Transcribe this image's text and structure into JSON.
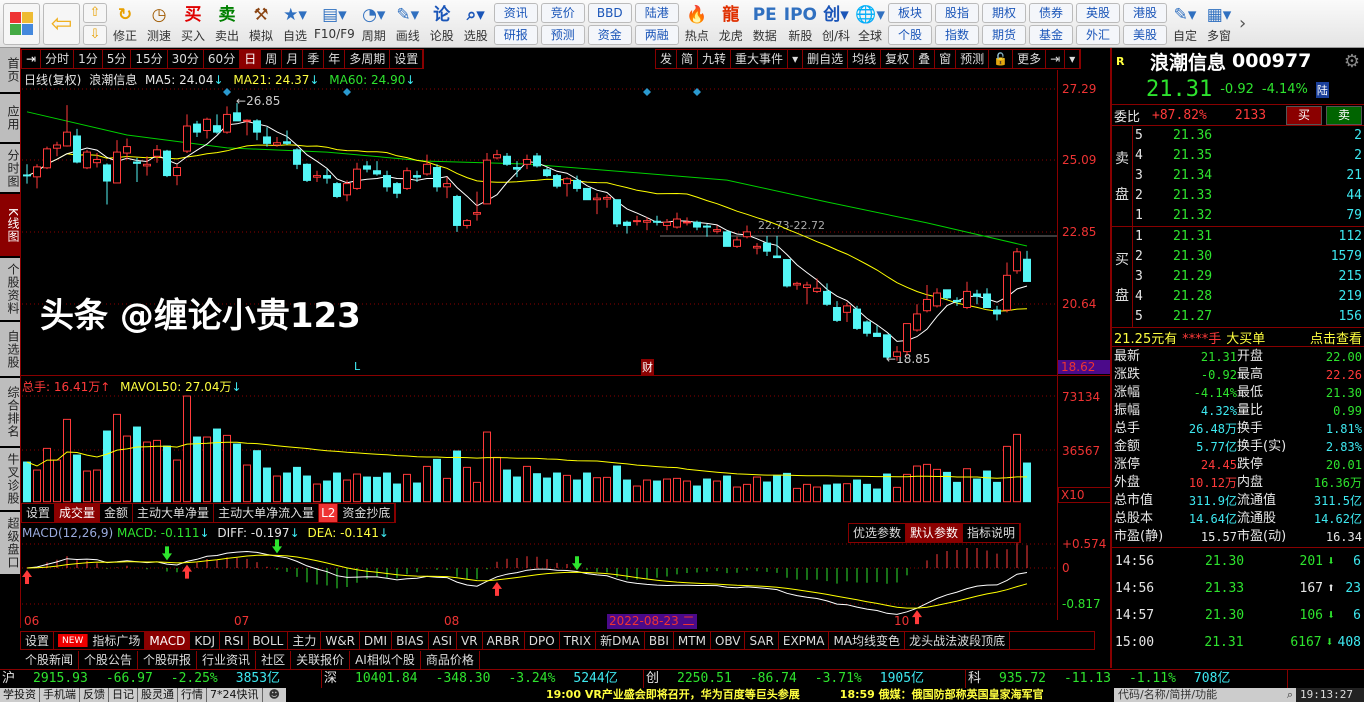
{
  "toolbar": {
    "nav": [
      {
        "icon": "up-arrow-icon",
        "glyph": "⇧"
      },
      {
        "icon": "down-arrow-icon",
        "glyph": "⇩"
      }
    ],
    "icons_a": [
      {
        "label": "修正",
        "icon": "refresh-icon",
        "glyph": "↻",
        "color": "#e8a000"
      },
      {
        "label": "测速",
        "icon": "clock-icon",
        "glyph": "◷",
        "color": "#a05a00"
      },
      {
        "label": "买入",
        "icon": "buy-icon",
        "glyph": "买",
        "color": "#e00000"
      },
      {
        "label": "卖出",
        "icon": "sell-icon",
        "glyph": "卖",
        "color": "#008000"
      },
      {
        "label": "模拟",
        "icon": "gavel-icon",
        "glyph": "⚒",
        "color": "#8b4513"
      },
      {
        "label": "自选",
        "icon": "favorites-folder-icon",
        "glyph": "★▾",
        "color": "#3070c0"
      },
      {
        "label": "F10/F9",
        "icon": "f10-document-icon",
        "glyph": "▤▾",
        "color": "#3070c0"
      },
      {
        "label": "周期",
        "icon": "period-icon",
        "glyph": "◔▾",
        "color": "#3070c0"
      },
      {
        "label": "画线",
        "icon": "pencil-icon",
        "glyph": "✎▾",
        "color": "#3070c0"
      },
      {
        "label": "论股",
        "icon": "discuss-icon",
        "glyph": "论",
        "color": "#1a55b8"
      },
      {
        "label": "选股",
        "icon": "stock-picker-icon",
        "glyph": "⌕▾",
        "color": "#1a55b8"
      }
    ],
    "pairs_a": [
      [
        "资讯",
        "研报"
      ],
      [
        "竞价",
        "预测"
      ],
      [
        "BBD",
        "资金"
      ],
      [
        "陆港",
        "两融"
      ]
    ],
    "icons_b": [
      {
        "label": "热点",
        "icon": "hot-fire-icon",
        "glyph": "🔥",
        "color": "#e03000"
      },
      {
        "label": "龙虎",
        "icon": "dragon-icon",
        "glyph": "龍",
        "color": "#e03000"
      },
      {
        "label": "数据",
        "icon": "pe-data-icon",
        "glyph": "PE",
        "color": "#3070c0"
      },
      {
        "label": "新股",
        "icon": "ipo-icon",
        "glyph": "IPO",
        "color": "#3070c0"
      },
      {
        "label": "创/科",
        "icon": "chuang-icon",
        "glyph": "创▾",
        "color": "#1a55b8"
      },
      {
        "label": "全球",
        "icon": "globe-icon",
        "glyph": "🌐▾",
        "color": "#3070c0"
      }
    ],
    "pairs_b": [
      [
        "板块",
        "个股"
      ],
      [
        "股指",
        "指数"
      ],
      [
        "期权",
        "期货"
      ],
      [
        "债券",
        "基金"
      ],
      [
        "英股",
        "外汇"
      ],
      [
        "港股",
        "美股"
      ]
    ],
    "icons_c": [
      {
        "label": "自定",
        "icon": "customize-icon",
        "glyph": "✎▾",
        "color": "#3070c0"
      },
      {
        "label": "多窗",
        "icon": "multi-window-icon",
        "glyph": "▦▾",
        "color": "#3070c0"
      }
    ],
    "more": "›"
  },
  "sidebar": [
    {
      "label": "首页"
    },
    {
      "label": "应用"
    },
    {
      "label": "分时图"
    },
    {
      "label": "K线图",
      "active": true
    },
    {
      "label": "个股资料"
    },
    {
      "label": "自选股"
    },
    {
      "label": "综合排名"
    },
    {
      "label": "牛叉诊股"
    },
    {
      "label": "超级盘口"
    }
  ],
  "period_tabs": [
    "分时",
    "1分",
    "5分",
    "15分",
    "30分",
    "60分",
    "日",
    "周",
    "月",
    "季",
    "年",
    "多周期",
    "设置"
  ],
  "period_active": "日",
  "tool_tabs": [
    "发",
    "简",
    "九转",
    "重大事件",
    "▾",
    "删自选",
    "均线",
    "复权",
    "叠",
    "窗",
    "预测",
    "🔓",
    "更多",
    "⇥",
    "▾"
  ],
  "chart_info": {
    "title": "日线(复权)",
    "name": "浪潮信息",
    "ma5": "MA5: 24.04",
    "ma21": "MA21: 24.37",
    "ma60": "MA60: 24.90",
    "arrow_down": "↓"
  },
  "price_axis": [
    "27.29",
    "25.09",
    "22.85",
    "20.64",
    "18.62"
  ],
  "annotations": {
    "high": "26.85",
    "range": "22.73-22.72",
    "low": "18.85",
    "l_mark": "L",
    "cai_mark": "财"
  },
  "volume_info": {
    "label": "总手: 16.41万",
    "up": "↑",
    "mavol": "MAVOL50: 27.04万",
    "down": "↓"
  },
  "volume_axis": [
    "73134",
    "36567",
    "X10"
  ],
  "sub_tabs": [
    "设置",
    "成交量",
    "金额",
    "主动大单净量",
    "主动大单净流入量",
    "L2",
    "资金抄底"
  ],
  "sub_active": "成交量",
  "macd_info": {
    "name": "MACD(12,26,9)",
    "macd": "MACD: -0.111",
    "diff": "DIFF: -0.197",
    "dea": "DEA: -0.141",
    "down": "↓"
  },
  "macd_buttons": [
    "优选参数",
    "默认参数",
    "指标说明"
  ],
  "macd_axis": [
    "+0.574",
    "0",
    "-0.817"
  ],
  "date_axis": [
    {
      "label": "06",
      "i": 0
    },
    {
      "label": "07",
      "i": 21
    },
    {
      "label": "08",
      "i": 42
    },
    {
      "label": "10",
      "i": 87
    }
  ],
  "date_highlight": "2022-08-23 二",
  "indicator_tabs": [
    "设置",
    "NEW",
    "指标广场",
    "MACD",
    "KDJ",
    "RSI",
    "BOLL",
    "主力",
    "W&R",
    "DMI",
    "BIAS",
    "ASI",
    "VR",
    "ARBR",
    "DPO",
    "TRIX",
    "新DMA",
    "BBI",
    "MTM",
    "OBV",
    "SAR",
    "EXPMA",
    "MA均线变色",
    "龙头战法波段顶底"
  ],
  "indicator_active": "MACD",
  "news_tabs": [
    "个股新闻",
    "个股公告",
    "个股研报",
    "行业资讯",
    "社区",
    "关联报价",
    "AI相似个股",
    "商品价格"
  ],
  "quote": {
    "flag": "R",
    "name": "浪潮信息",
    "code": "000977",
    "price": "21.31",
    "change": "-0.92",
    "pct": "-4.14%",
    "tag": "陆",
    "weibi_label": "委比",
    "weibi": "+87.82%",
    "weicha": "2133",
    "buy_btn": "买",
    "sell_btn": "卖",
    "sell_label": [
      "卖",
      "盘"
    ],
    "buy_label": [
      "买",
      "盘"
    ],
    "asks": [
      [
        "5",
        "21.36",
        "2"
      ],
      [
        "4",
        "21.35",
        "2"
      ],
      [
        "3",
        "21.34",
        "21"
      ],
      [
        "2",
        "21.33",
        "44"
      ],
      [
        "1",
        "21.32",
        "79"
      ]
    ],
    "bids": [
      [
        "1",
        "21.31",
        "112"
      ],
      [
        "2",
        "21.30",
        "1579"
      ],
      [
        "3",
        "21.29",
        "215"
      ],
      [
        "4",
        "21.28",
        "219"
      ],
      [
        "5",
        "21.27",
        "156"
      ]
    ],
    "bigorder": {
      "price": "21.25元有",
      "qty": "****手",
      "label": "大买单",
      "link": "点击查看"
    },
    "stats": [
      [
        [
          "最新",
          "21.31",
          "g"
        ],
        [
          "开盘",
          "22.00",
          "g"
        ]
      ],
      [
        [
          "涨跌",
          "-0.92",
          "g"
        ],
        [
          "最高",
          "22.26",
          "r"
        ]
      ],
      [
        [
          "涨幅",
          "-4.14%",
          "g"
        ],
        [
          "最低",
          "21.30",
          "g"
        ]
      ],
      [
        [
          "振幅",
          "4.32%",
          "c"
        ],
        [
          "量比",
          "0.99",
          "g"
        ]
      ],
      [
        [
          "总手",
          "26.48万",
          "c"
        ],
        [
          "换手",
          "1.81%",
          "c"
        ]
      ],
      [
        [
          "金额",
          "5.77亿",
          "c"
        ],
        [
          "换手(实)",
          "2.83%",
          "c"
        ]
      ],
      [
        [
          "涨停",
          "24.45",
          "r"
        ],
        [
          "跌停",
          "20.01",
          "g"
        ]
      ],
      [
        [
          "外盘",
          "10.12万",
          "r"
        ],
        [
          "内盘",
          "16.36万",
          "g"
        ]
      ],
      [
        [
          "总市值",
          "311.9亿",
          "c"
        ],
        [
          "流通值",
          "311.5亿",
          "c"
        ]
      ],
      [
        [
          "总股本",
          "14.64亿",
          "c"
        ],
        [
          "流通股",
          "14.62亿",
          "c"
        ]
      ],
      [
        [
          "市盈(静)",
          "15.57",
          "w"
        ],
        [
          "市盈(动)",
          "16.34",
          "w"
        ]
      ]
    ],
    "ticks": [
      {
        "time": "14:56",
        "price": "21.30",
        "vol": "201",
        "dir": "down",
        "n": "6"
      },
      {
        "time": "14:56",
        "price": "21.33",
        "vol": "167",
        "dir": "up",
        "n": "23"
      },
      {
        "time": "14:57",
        "price": "21.30",
        "vol": "106",
        "dir": "down",
        "n": "6"
      },
      {
        "time": "15:00",
        "price": "21.31",
        "vol": "6167",
        "dir": "down",
        "n": "408"
      }
    ]
  },
  "index_row": [
    {
      "name": "沪",
      "value": "2915.93",
      "chg": "-66.97",
      "pct": "-2.25%",
      "amt": "3853亿"
    },
    {
      "name": "深",
      "value": "10401.84",
      "chg": "-348.30",
      "pct": "-3.24%",
      "amt": "5244亿"
    },
    {
      "name": "创",
      "value": "2250.51",
      "chg": "-86.74",
      "pct": "-3.71%",
      "amt": "1905亿"
    },
    {
      "name": "科",
      "value": "935.72",
      "chg": "-11.13",
      "pct": "-1.11%",
      "amt": "708亿"
    }
  ],
  "status_bar": {
    "links": [
      "学投资",
      "手机端",
      "反馈",
      "日记",
      "股灵通",
      "行情",
      "7*24快讯"
    ],
    "news1": "19:00 VR产业盛会即将召开，华为百度等巨头参展",
    "news2": "18:59 俄媒：俄国防部称英国皇家海军官",
    "search_placeholder": "代码/名称/简拼/功能",
    "time": "19:13:27"
  },
  "watermark": "头条 @缠论小贵123",
  "colors": {
    "up": "#ff3a3a",
    "down": "#54f5f5",
    "ma5": "#ffffff",
    "ma21": "#ffff00",
    "ma60": "#00d000",
    "grid": "#8b0000",
    "accent": "#8b0000"
  },
  "chart_data": {
    "type": "candlestick",
    "price_range": [
      18.62,
      27.29
    ],
    "candles_ohlc": [
      [
        24.62,
        24.59,
        24.95,
        24.35
      ],
      [
        24.56,
        24.87,
        24.95,
        24.2
      ],
      [
        24.84,
        25.43,
        25.5,
        24.8
      ],
      [
        25.45,
        25.55,
        25.65,
        25.2
      ],
      [
        25.52,
        25.95,
        26.79,
        25.5
      ],
      [
        25.83,
        25.02,
        26.05,
        24.98
      ],
      [
        24.84,
        25.33,
        25.4,
        24.8
      ],
      [
        25.0,
        25.1,
        25.3,
        24.85
      ],
      [
        24.93,
        24.43,
        24.98,
        23.7
      ],
      [
        24.37,
        25.33,
        25.7,
        24.37
      ],
      [
        25.3,
        25.5,
        25.75,
        25.1
      ],
      [
        25.02,
        24.98,
        25.15,
        24.4
      ],
      [
        24.9,
        24.95,
        25.2,
        24.6
      ],
      [
        25.2,
        25.4,
        25.55,
        25.0
      ],
      [
        25.36,
        24.6,
        25.4,
        24.55
      ],
      [
        24.6,
        24.85,
        24.95,
        24.3
      ],
      [
        25.36,
        26.14,
        26.5,
        25.3
      ],
      [
        26.2,
        25.95,
        26.3,
        25.8
      ],
      [
        26.0,
        26.35,
        26.4,
        25.75
      ],
      [
        26.15,
        25.95,
        26.5,
        25.9
      ],
      [
        25.95,
        26.5,
        26.75,
        25.9
      ],
      [
        26.55,
        26.3,
        26.85,
        26.3
      ],
      [
        26.3,
        26.32,
        26.35,
        25.85
      ],
      [
        26.3,
        25.95,
        26.35,
        25.7
      ],
      [
        25.8,
        25.6,
        26.1,
        25.5
      ],
      [
        25.55,
        25.62,
        25.8,
        25.5
      ],
      [
        25.65,
        25.6,
        26.0,
        25.55
      ],
      [
        25.4,
        24.95,
        25.45,
        24.8
      ],
      [
        24.95,
        24.45,
        24.98,
        24.4
      ],
      [
        24.55,
        24.6,
        24.75,
        24.4
      ],
      [
        24.6,
        24.52,
        24.8,
        24.35
      ],
      [
        24.35,
        23.95,
        24.4,
        23.9
      ],
      [
        24.0,
        24.35,
        24.45,
        23.8
      ],
      [
        24.2,
        24.8,
        25.0,
        24.15
      ],
      [
        24.9,
        24.8,
        25.05,
        24.7
      ],
      [
        24.75,
        24.65,
        25.05,
        24.6
      ],
      [
        24.6,
        24.25,
        24.75,
        24.1
      ],
      [
        24.35,
        24.05,
        24.4,
        23.9
      ],
      [
        24.2,
        24.75,
        24.85,
        24.15
      ],
      [
        24.6,
        24.55,
        24.75,
        24.4
      ],
      [
        24.65,
        24.95,
        25.25,
        24.6
      ],
      [
        24.85,
        24.25,
        24.95,
        24.1
      ],
      [
        24.25,
        24.35,
        24.55,
        23.9
      ],
      [
        23.95,
        23.05,
        24.0,
        22.85
      ],
      [
        23.05,
        23.2,
        23.25,
        22.95
      ],
      [
        23.4,
        23.45,
        24.1,
        23.2
      ],
      [
        23.72,
        25.08,
        25.3,
        23.72
      ],
      [
        25.15,
        25.25,
        25.4,
        25.1
      ],
      [
        25.2,
        24.95,
        25.3,
        24.9
      ],
      [
        24.85,
        24.8,
        25.05,
        24.55
      ],
      [
        24.95,
        25.1,
        25.25,
        24.8
      ],
      [
        25.21,
        24.9,
        25.3,
        24.85
      ],
      [
        24.78,
        24.6,
        24.85,
        24.55
      ],
      [
        24.6,
        24.27,
        24.65,
        24.2
      ],
      [
        24.35,
        24.5,
        24.55,
        23.95
      ],
      [
        24.45,
        24.2,
        24.6,
        24.1
      ],
      [
        24.2,
        23.85,
        24.2,
        23.85
      ],
      [
        23.85,
        23.9,
        24.05,
        23.4
      ],
      [
        23.87,
        23.92,
        24.0,
        23.6
      ],
      [
        23.85,
        23.1,
        23.85,
        23.0
      ],
      [
        23.15,
        23.05,
        23.2,
        22.8
      ],
      [
        23.18,
        23.2,
        23.35,
        23.05
      ],
      [
        23.15,
        23.2,
        23.3,
        22.9
      ],
      [
        23.18,
        23.17,
        23.35,
        23.05
      ],
      [
        23.05,
        23.15,
        23.25,
        22.9
      ],
      [
        23.0,
        23.25,
        23.45,
        22.95
      ],
      [
        23.15,
        23.16,
        23.3,
        23.05
      ],
      [
        23.15,
        23.0,
        23.2,
        22.9
      ],
      [
        23.03,
        23.0,
        23.1,
        22.7
      ],
      [
        22.87,
        22.92,
        23.05,
        22.8
      ],
      [
        22.85,
        22.4,
        22.9,
        22.4
      ],
      [
        22.4,
        22.6,
        22.7,
        22.35
      ],
      [
        22.7,
        22.85,
        23.05,
        22.65
      ],
      [
        22.35,
        22.4,
        22.5,
        22.15
      ],
      [
        22.5,
        22.25,
        22.72,
        22.1
      ],
      [
        22.1,
        22.05,
        22.72,
        22.05
      ],
      [
        21.99,
        21.17,
        22.0,
        21.12
      ],
      [
        21.2,
        21.25,
        21.3,
        21.05
      ],
      [
        21.12,
        21.2,
        21.3,
        20.6
      ],
      [
        21.0,
        21.1,
        21.4,
        20.95
      ],
      [
        21.0,
        20.6,
        21.25,
        20.55
      ],
      [
        20.5,
        20.1,
        20.7,
        20.05
      ],
      [
        20.35,
        20.55,
        20.65,
        20.05
      ],
      [
        20.45,
        19.85,
        20.55,
        19.8
      ],
      [
        20.05,
        19.7,
        20.1,
        19.6
      ],
      [
        19.7,
        19.6,
        19.95,
        19.6
      ],
      [
        19.65,
        18.96,
        19.65,
        18.9
      ],
      [
        18.98,
        19.12,
        19.3,
        18.85
      ],
      [
        19.13,
        20.0,
        20.0,
        19.0
      ],
      [
        19.8,
        20.3,
        20.6,
        19.75
      ],
      [
        20.4,
        20.75,
        21.2,
        20.35
      ],
      [
        20.55,
        20.95,
        21.1,
        20.5
      ],
      [
        21.05,
        20.8,
        21.05,
        20.75
      ],
      [
        20.72,
        20.68,
        20.82,
        20.55
      ],
      [
        20.5,
        21.0,
        21.3,
        20.45
      ],
      [
        20.92,
        20.85,
        21.05,
        20.6
      ],
      [
        20.92,
        20.5,
        21.1,
        20.5
      ],
      [
        20.42,
        20.3,
        20.55,
        20.1
      ],
      [
        20.42,
        21.5,
        21.9,
        20.35
      ],
      [
        21.64,
        22.23,
        22.35,
        21.55
      ],
      [
        22.0,
        21.31,
        22.26,
        21.3
      ]
    ],
    "ma60_samples": [
      [
        0,
        26.58
      ],
      [
        10,
        25.86
      ],
      [
        20,
        25.46
      ],
      [
        30,
        25.33
      ],
      [
        40,
        25.05
      ],
      [
        50,
        24.96
      ],
      [
        60,
        24.71
      ],
      [
        70,
        24.46
      ],
      [
        80,
        23.78
      ],
      [
        90,
        23.13
      ],
      [
        100,
        22.41
      ]
    ],
    "volume_range": [
      0,
      73134
    ],
    "volumes": [
      26860,
      21440,
      36110,
      28210,
      55750,
      31600,
      20760,
      21440,
      47850,
      59130,
      44460,
      50560,
      40400,
      41530,
      37690,
      28210,
      71550,
      43790,
      43790,
      49200,
      44910,
      39050,
      24830,
      34530,
      22800,
      17380,
      19410,
      23250,
      17380,
      11960,
      13990,
      19410,
      14670,
      18730,
      16700,
      16480,
      19410,
      11960,
      18510,
      12640,
      23920,
      28660,
      15800,
      34310,
      23250,
      13090,
      47170,
      30020,
      21440,
      16700,
      23920,
      18960,
      16020,
      19410,
      17830,
      14670,
      19410,
      16250,
      16480,
      24150,
      14670,
      10610,
      14670,
      13990,
      15350,
      15800,
      13990,
      10610,
      15350,
      13990,
      17380,
      9930,
      11740,
      16700,
      13320,
      17380,
      19180,
      9030,
      11740,
      9930,
      11290,
      11960,
      12190,
      14670,
      11740,
      8580,
      18730,
      9710,
      18510,
      24150,
      25280,
      21890,
      19860,
      13090,
      22340,
      15350,
      20760,
      13090,
      37470,
      45590,
      26180
    ],
    "top_markers": [
      20,
      32,
      62,
      67
    ],
    "macd_range": [
      -0.817,
      0.574
    ],
    "macd_signals": [
      {
        "i": 0,
        "dir": "up"
      },
      {
        "i": 14,
        "dir": "down"
      },
      {
        "i": 16,
        "dir": "up"
      },
      {
        "i": 25,
        "dir": "down"
      },
      {
        "i": 47,
        "dir": "up"
      },
      {
        "i": 55,
        "dir": "down"
      },
      {
        "i": 89,
        "dir": "up"
      }
    ]
  }
}
